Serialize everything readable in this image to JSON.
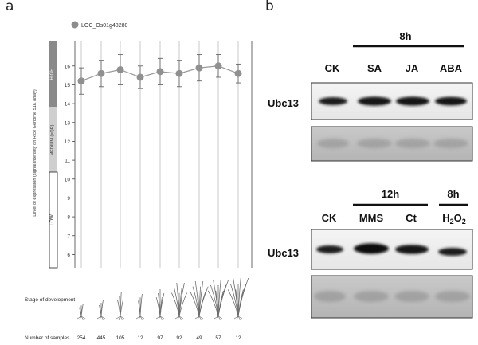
{
  "panels": {
    "a": {
      "letter": "a"
    },
    "b": {
      "letter": "b"
    }
  },
  "chart_data": {
    "type": "line",
    "legend": {
      "series_name": "LOC_Os01g48280",
      "placement": "top-left"
    },
    "ylabel": "Level of expression (signal intensity on Rice Genome 51K array)",
    "ylim": [
      5.3,
      17.3
    ],
    "yticks": [
      6,
      7,
      8,
      9,
      10,
      11,
      12,
      13,
      14,
      15,
      16
    ],
    "bands": [
      {
        "label": "HIGH",
        "range": [
          15,
          17.3
        ]
      },
      {
        "label": "MEDIUM (eQR)",
        "range": [
          10.7,
          15
        ]
      },
      {
        "label": "LOW",
        "range": [
          5.3,
          10.7
        ]
      }
    ],
    "x": [
      1,
      2,
      3,
      4,
      5,
      6,
      7,
      8,
      9
    ],
    "series": [
      {
        "name": "LOC_Os01g48280",
        "values": [
          15.2,
          15.6,
          15.8,
          15.4,
          15.7,
          15.6,
          15.9,
          16.0,
          15.6
        ],
        "errors": [
          0.7,
          0.7,
          0.8,
          0.6,
          0.7,
          0.7,
          0.7,
          0.6,
          0.5
        ]
      }
    ],
    "stage_label": "Stage of development",
    "samples_label": "Number of samples",
    "samples": [
      "254",
      "445",
      "105",
      "12",
      "97",
      "92",
      "49",
      "57",
      "12"
    ],
    "color": "#909090"
  },
  "blots": {
    "top": {
      "time_label": "8h",
      "lanes": [
        "CK",
        "SA",
        "JA",
        "ABA"
      ],
      "gene": "Ubc13"
    },
    "bottom": {
      "time_label_1": "12h",
      "time_label_2": "8h",
      "lanes": [
        "CK",
        "MMS",
        "Ct"
      ],
      "h2o2": {
        "base1": "H",
        "sub1": "2",
        "base2": "O",
        "sub2": "2"
      },
      "gene": "Ubc13"
    }
  }
}
